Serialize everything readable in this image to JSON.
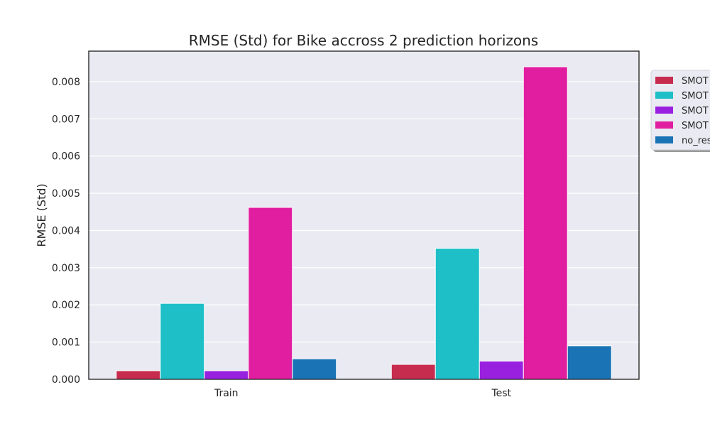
{
  "chart_data": {
    "type": "bar",
    "title": "RMSE (Std) for Bike accross 2 prediction horizons",
    "xlabel": "",
    "ylabel": "RMSE (Std)",
    "categories": [
      "Train",
      "Test"
    ],
    "ylim": [
      0,
      0.00882
    ],
    "yticks": [
      0.0,
      0.001,
      0.002,
      0.003,
      0.004,
      0.005,
      0.006,
      0.007,
      0.008
    ],
    "ytick_labels": [
      "0.000",
      "0.001",
      "0.002",
      "0.003",
      "0.004",
      "0.005",
      "0.006",
      "0.007",
      "0.008"
    ],
    "grid": true,
    "legend_position": "top-right, outside (clipped)",
    "series": [
      {
        "name": "SMOT",
        "color": "#c72c4f",
        "values": [
          0.00023,
          0.0004
        ]
      },
      {
        "name": "SMOT",
        "color": "#1ebfc7",
        "values": [
          0.00204,
          0.00352
        ]
      },
      {
        "name": "SMOT",
        "color": "#9a20e0",
        "values": [
          0.00023,
          0.00049
        ]
      },
      {
        "name": "SMOT",
        "color": "#e01e9f",
        "values": [
          0.00462,
          0.0084
        ]
      },
      {
        "name": "no_res",
        "color": "#1a73b4",
        "values": [
          0.00055,
          0.0009
        ]
      }
    ]
  }
}
